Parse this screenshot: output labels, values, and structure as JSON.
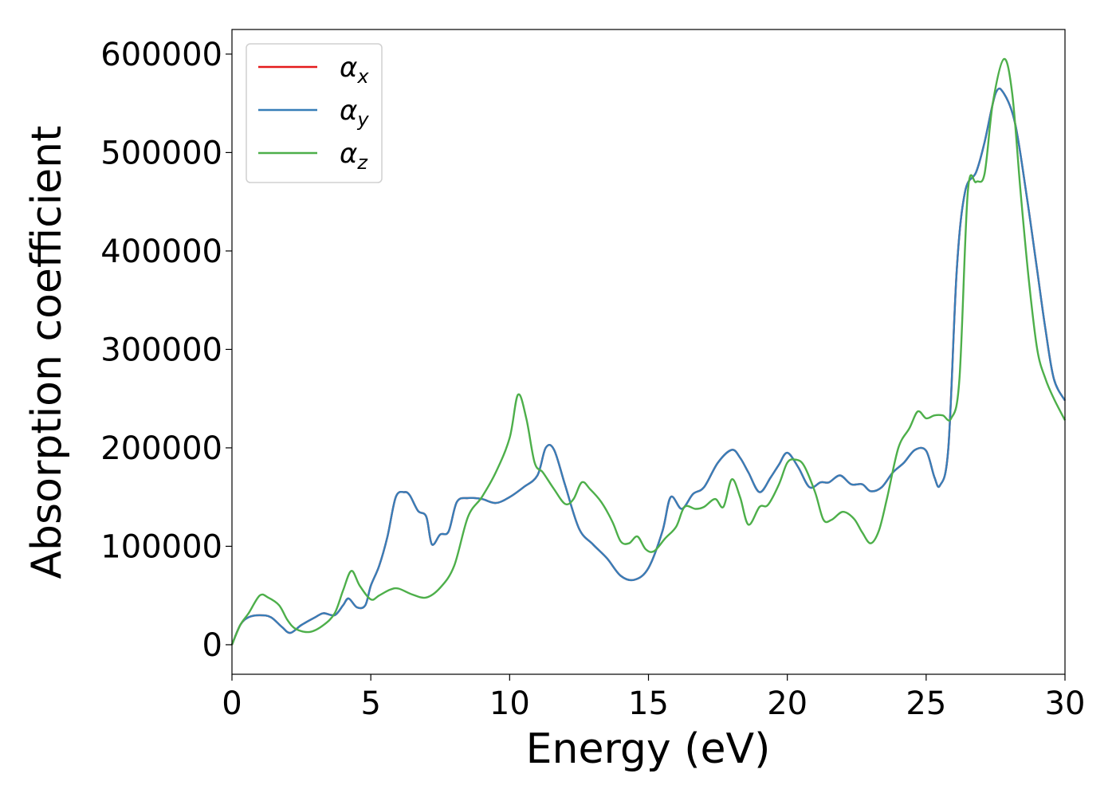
{
  "chart_data": {
    "type": "line",
    "xlabel": "Energy (eV)",
    "ylabel": "Absorption coefficient",
    "xlim": [
      0,
      30
    ],
    "ylim": [
      -30000,
      625000
    ],
    "x_ticks": [
      "0",
      "5",
      "10",
      "15",
      "20",
      "25",
      "30"
    ],
    "x_tick_values": [
      0,
      5,
      10,
      15,
      20,
      25,
      30
    ],
    "y_ticks": [
      "0",
      "100000",
      "200000",
      "300000",
      "400000",
      "500000",
      "600000"
    ],
    "y_tick_values": [
      0,
      100000,
      200000,
      300000,
      400000,
      500000,
      600000
    ],
    "grid": false,
    "legend_position": "top-left",
    "series": [
      {
        "name": "α_x",
        "legend": {
          "base": "α",
          "sub": "x"
        },
        "color": "#e41a1c",
        "x": [
          0,
          0.3,
          0.6,
          1.0,
          1.4,
          1.8,
          2.1,
          2.5,
          3.0,
          3.3,
          3.7,
          4.0,
          4.2,
          4.5,
          4.8,
          5.0,
          5.3,
          5.6,
          5.9,
          6.2,
          6.4,
          6.7,
          7.0,
          7.2,
          7.5,
          7.8,
          8.1,
          8.5,
          9.0,
          9.5,
          10.0,
          10.5,
          11.0,
          11.3,
          11.6,
          12.0,
          12.5,
          13.0,
          13.5,
          14.0,
          14.5,
          15.0,
          15.5,
          15.8,
          16.2,
          16.6,
          17.0,
          17.5,
          18.0,
          18.3,
          18.6,
          19.0,
          19.4,
          19.7,
          20.0,
          20.4,
          20.8,
          21.2,
          21.5,
          21.9,
          22.3,
          22.7,
          23.0,
          23.4,
          23.8,
          24.2,
          24.6,
          25.0,
          25.3,
          25.5,
          25.8,
          26.1,
          26.4,
          26.8,
          27.1,
          27.5,
          27.8,
          28.2,
          28.6,
          29.0,
          29.3,
          29.6,
          30.0
        ],
        "y": [
          0,
          20000,
          28000,
          30000,
          28000,
          18000,
          12000,
          20000,
          28000,
          32000,
          30000,
          40000,
          47000,
          38000,
          40000,
          60000,
          80000,
          110000,
          150000,
          155000,
          152000,
          136000,
          130000,
          102000,
          112000,
          115000,
          145000,
          149000,
          148000,
          144000,
          150000,
          160000,
          172000,
          200000,
          198000,
          162000,
          118000,
          102000,
          88000,
          70000,
          66000,
          78000,
          115000,
          150000,
          138000,
          153000,
          160000,
          185000,
          198000,
          190000,
          175000,
          155000,
          170000,
          183000,
          195000,
          180000,
          160000,
          165000,
          165000,
          172000,
          163000,
          163000,
          156000,
          160000,
          175000,
          185000,
          198000,
          197000,
          170000,
          162000,
          200000,
          380000,
          460000,
          480000,
          510000,
          560000,
          560000,
          530000,
          460000,
          380000,
          320000,
          270000,
          248000
        ]
      },
      {
        "name": "α_y",
        "legend": {
          "base": "α",
          "sub": "y"
        },
        "color": "#377eb8",
        "x": [
          0,
          0.3,
          0.6,
          1.0,
          1.4,
          1.8,
          2.1,
          2.5,
          3.0,
          3.3,
          3.7,
          4.0,
          4.2,
          4.5,
          4.8,
          5.0,
          5.3,
          5.6,
          5.9,
          6.2,
          6.4,
          6.7,
          7.0,
          7.2,
          7.5,
          7.8,
          8.1,
          8.5,
          9.0,
          9.5,
          10.0,
          10.5,
          11.0,
          11.3,
          11.6,
          12.0,
          12.5,
          13.0,
          13.5,
          14.0,
          14.5,
          15.0,
          15.5,
          15.8,
          16.2,
          16.6,
          17.0,
          17.5,
          18.0,
          18.3,
          18.6,
          19.0,
          19.4,
          19.7,
          20.0,
          20.4,
          20.8,
          21.2,
          21.5,
          21.9,
          22.3,
          22.7,
          23.0,
          23.4,
          23.8,
          24.2,
          24.6,
          25.0,
          25.3,
          25.5,
          25.8,
          26.1,
          26.4,
          26.8,
          27.1,
          27.5,
          27.8,
          28.2,
          28.6,
          29.0,
          29.3,
          29.6,
          30.0
        ],
        "y": [
          0,
          20000,
          28000,
          30000,
          28000,
          18000,
          12000,
          20000,
          28000,
          32000,
          30000,
          40000,
          47000,
          38000,
          40000,
          60000,
          80000,
          110000,
          150000,
          155000,
          152000,
          136000,
          130000,
          102000,
          112000,
          115000,
          145000,
          149000,
          148000,
          144000,
          150000,
          160000,
          172000,
          200000,
          198000,
          162000,
          118000,
          102000,
          88000,
          70000,
          66000,
          78000,
          115000,
          150000,
          138000,
          153000,
          160000,
          185000,
          198000,
          190000,
          175000,
          155000,
          170000,
          183000,
          195000,
          180000,
          160000,
          165000,
          165000,
          172000,
          163000,
          163000,
          156000,
          160000,
          175000,
          185000,
          198000,
          197000,
          170000,
          162000,
          200000,
          380000,
          460000,
          480000,
          510000,
          560000,
          560000,
          530000,
          460000,
          380000,
          320000,
          270000,
          248000
        ]
      },
      {
        "name": "α_z",
        "legend": {
          "base": "α",
          "sub": "z"
        },
        "color": "#4daf4a",
        "x": [
          0,
          0.3,
          0.6,
          1.0,
          1.3,
          1.7,
          2.0,
          2.3,
          2.8,
          3.3,
          3.7,
          4.0,
          4.3,
          4.6,
          5.0,
          5.3,
          5.7,
          6.0,
          6.5,
          7.0,
          7.5,
          8.0,
          8.5,
          9.0,
          9.5,
          10.0,
          10.3,
          10.6,
          10.9,
          11.2,
          11.6,
          12.0,
          12.3,
          12.6,
          12.9,
          13.3,
          13.7,
          14.0,
          14.3,
          14.6,
          14.9,
          15.2,
          15.6,
          16.0,
          16.3,
          16.7,
          17.0,
          17.4,
          17.7,
          18.0,
          18.3,
          18.6,
          19.0,
          19.3,
          19.7,
          20.0,
          20.3,
          20.6,
          21.0,
          21.3,
          21.6,
          22.0,
          22.4,
          22.7,
          23.0,
          23.3,
          23.6,
          24.0,
          24.4,
          24.7,
          25.0,
          25.3,
          25.6,
          25.9,
          26.2,
          26.5,
          26.8,
          27.1,
          27.4,
          27.8,
          28.1,
          28.4,
          28.7,
          29.0,
          29.3,
          29.6,
          30.0
        ],
        "y": [
          0,
          20000,
          32000,
          50000,
          48000,
          40000,
          25000,
          16000,
          13000,
          20000,
          32000,
          55000,
          75000,
          60000,
          46000,
          50000,
          56000,
          57000,
          51000,
          48000,
          58000,
          80000,
          130000,
          150000,
          175000,
          210000,
          254000,
          230000,
          185000,
          175000,
          158000,
          143000,
          148000,
          165000,
          158000,
          145000,
          125000,
          105000,
          103000,
          110000,
          97000,
          95000,
          108000,
          120000,
          140000,
          138000,
          140000,
          148000,
          140000,
          168000,
          150000,
          122000,
          140000,
          142000,
          163000,
          185000,
          188000,
          182000,
          155000,
          127000,
          127000,
          135000,
          128000,
          114000,
          103000,
          116000,
          150000,
          200000,
          220000,
          237000,
          230000,
          233000,
          233000,
          230000,
          270000,
          460000,
          470000,
          478000,
          550000,
          595000,
          560000,
          460000,
          370000,
          300000,
          270000,
          250000,
          228000
        ]
      }
    ]
  }
}
